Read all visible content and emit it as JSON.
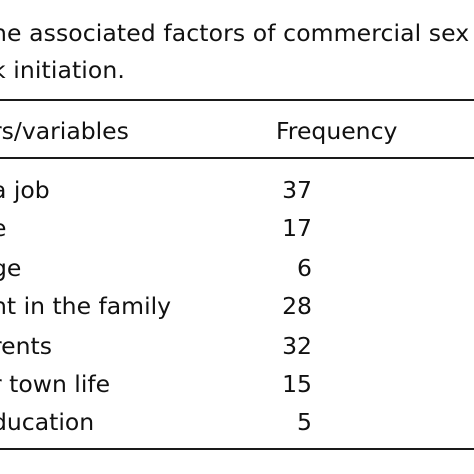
{
  "caption": {
    "line1": "he associated factors of commercial sex",
    "line2": "k initiation."
  },
  "table": {
    "headers": {
      "factor": "rs/variables",
      "frequency": "Frequency"
    },
    "rows": [
      {
        "factor": "a job",
        "frequency": "37"
      },
      {
        "factor": "e",
        "frequency": "17"
      },
      {
        "factor": "ge",
        "frequency": "6"
      },
      {
        "factor": "nt in the family",
        "frequency": "28"
      },
      {
        "factor": "rents",
        "frequency": "32"
      },
      {
        "factor": "r town life",
        "frequency": "15"
      },
      {
        "factor": "ducation",
        "frequency": "5"
      }
    ]
  }
}
